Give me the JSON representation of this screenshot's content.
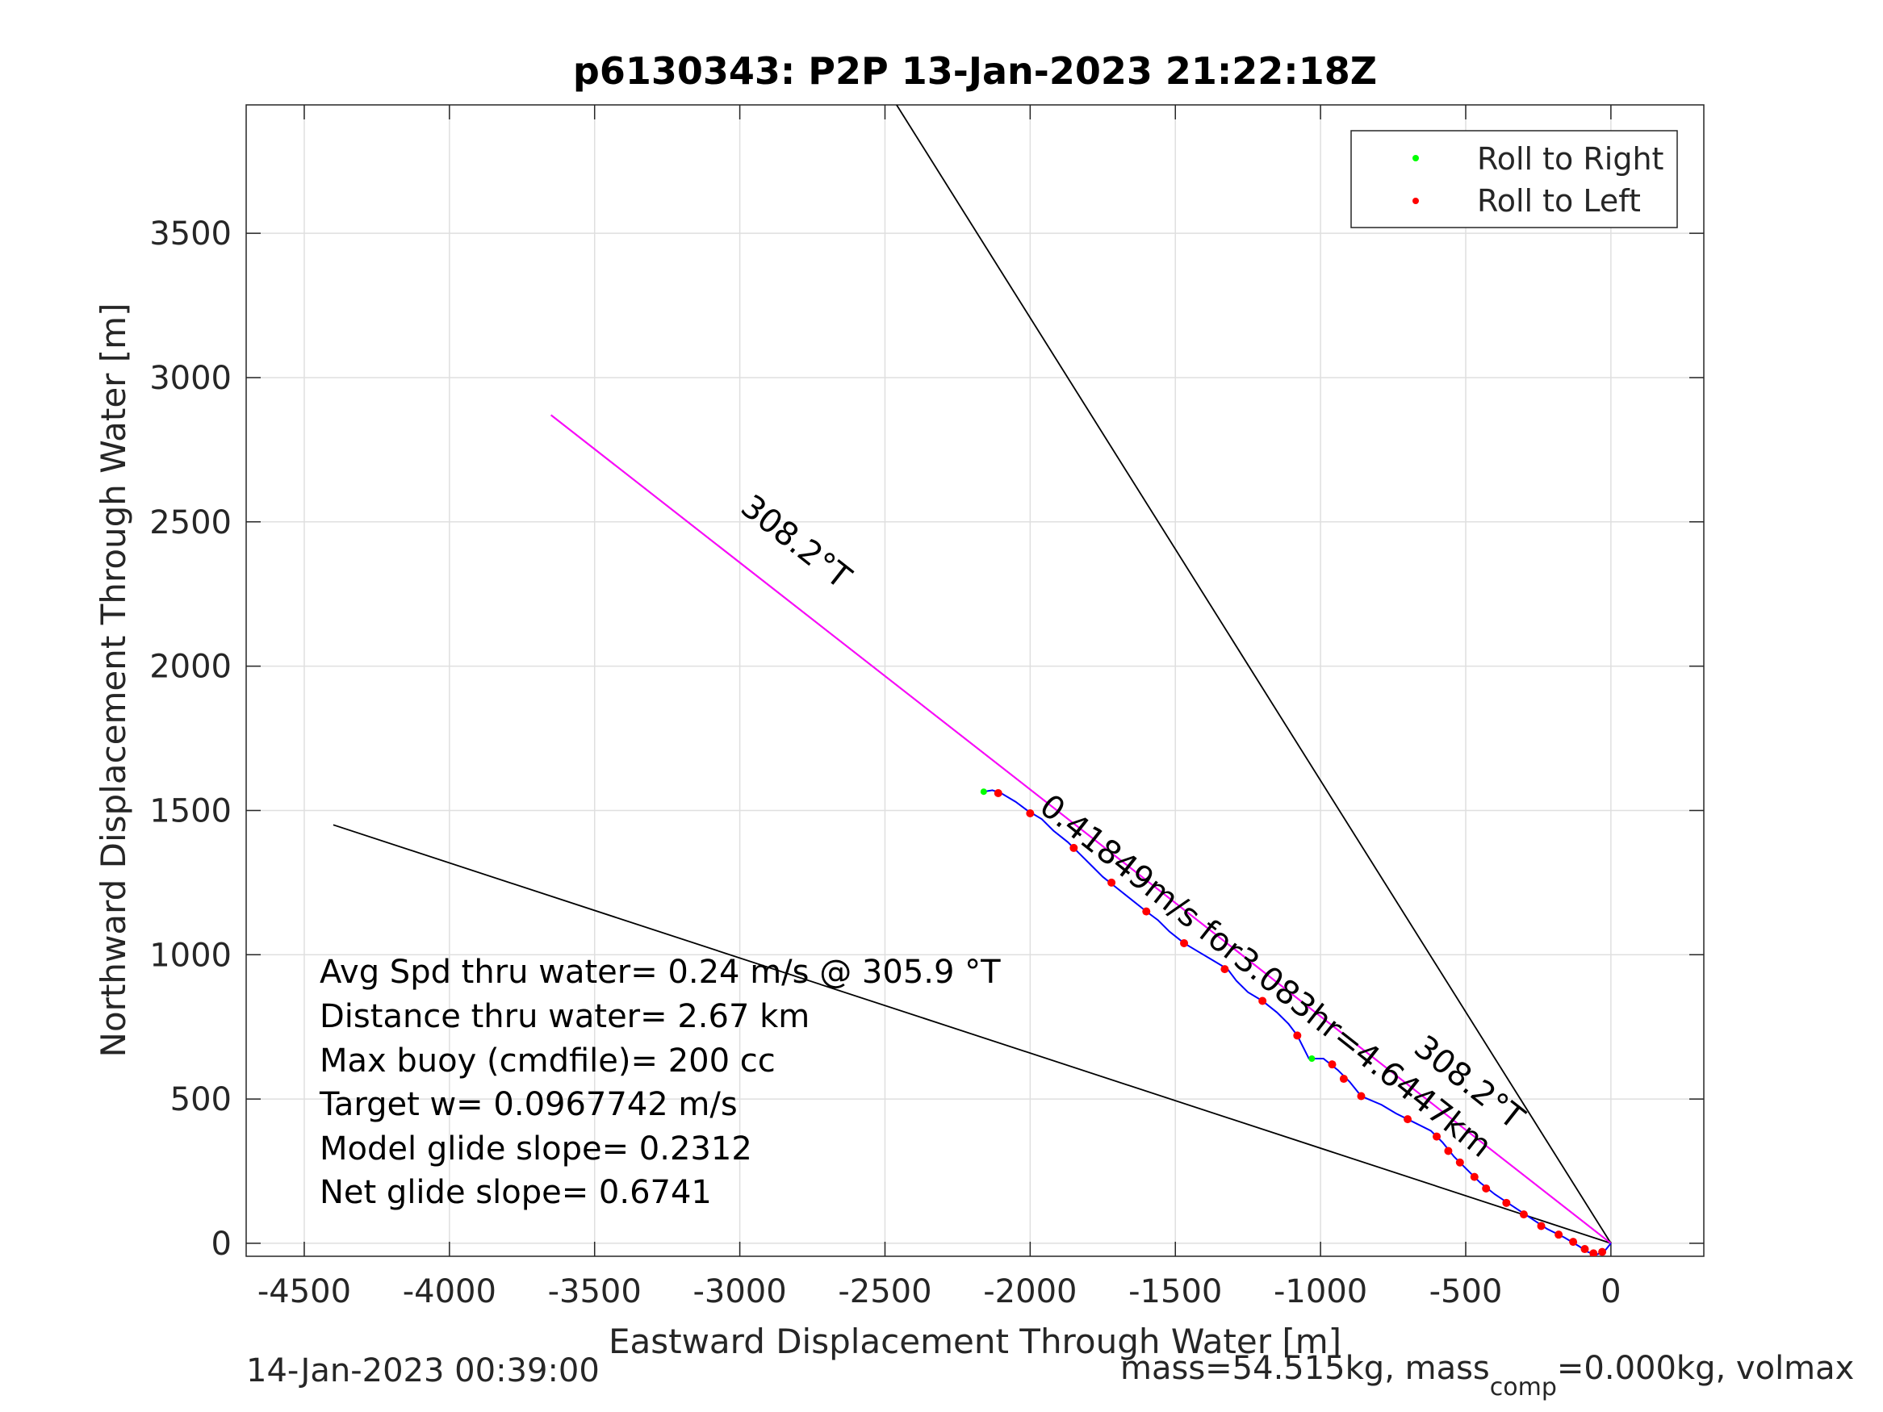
{
  "chart_data": {
    "type": "scatter",
    "title": "p6130343: P2P 13-Jan-2023 21:22:18Z",
    "xlabel": "Eastward Displacement Through Water [m]",
    "ylabel": "Northward Displacement Through Water [m]",
    "xlim": [
      -4700,
      320
    ],
    "ylim": [
      -45,
      3945
    ],
    "xticks": [
      -4500,
      -4000,
      -3500,
      -3000,
      -2500,
      -2000,
      -1500,
      -1000,
      -500,
      0
    ],
    "yticks": [
      0,
      500,
      1000,
      1500,
      2000,
      2500,
      3000,
      3500
    ],
    "grid": true,
    "legend": {
      "placement": "top-right",
      "entries": [
        {
          "label": "Roll to Right",
          "color": "#00ff00"
        },
        {
          "label": "Roll to Left",
          "color": "#ff0000"
        }
      ]
    },
    "lines": [
      {
        "points": [
          [
            0,
            0
          ],
          [
            -2460,
            3945
          ]
        ],
        "color": "#000000"
      },
      {
        "points": [
          [
            0,
            0
          ],
          [
            -4400,
            1450
          ]
        ],
        "color": "#000000"
      },
      {
        "points": [
          [
            0,
            0
          ],
          [
            -3650,
            2870
          ]
        ],
        "color": "#000000"
      },
      {
        "points": [
          [
            0,
            0
          ],
          [
            -3650,
            2870
          ]
        ],
        "color": "#ff00ff"
      }
    ],
    "track": {
      "color": "#0000ff",
      "points": [
        [
          0,
          0
        ],
        [
          -20,
          -25
        ],
        [
          -50,
          -40
        ],
        [
          -80,
          -30
        ],
        [
          -110,
          -10
        ],
        [
          -160,
          20
        ],
        [
          -220,
          50
        ],
        [
          -280,
          90
        ],
        [
          -340,
          130
        ],
        [
          -400,
          170
        ],
        [
          -450,
          210
        ],
        [
          -500,
          260
        ],
        [
          -540,
          300
        ],
        [
          -580,
          350
        ],
        [
          -620,
          390
        ],
        [
          -680,
          420
        ],
        [
          -740,
          450
        ],
        [
          -790,
          480
        ],
        [
          -860,
          510
        ],
        [
          -900,
          560
        ],
        [
          -940,
          600
        ],
        [
          -990,
          640
        ],
        [
          -1040,
          640
        ],
        [
          -1060,
          680
        ],
        [
          -1080,
          720
        ],
        [
          -1110,
          760
        ],
        [
          -1150,
          800
        ],
        [
          -1200,
          840
        ],
        [
          -1250,
          870
        ],
        [
          -1290,
          910
        ],
        [
          -1320,
          950
        ],
        [
          -1370,
          980
        ],
        [
          -1420,
          1010
        ],
        [
          -1470,
          1040
        ],
        [
          -1520,
          1080
        ],
        [
          -1560,
          1120
        ],
        [
          -1600,
          1150
        ],
        [
          -1650,
          1190
        ],
        [
          -1700,
          1230
        ],
        [
          -1750,
          1270
        ],
        [
          -1790,
          1310
        ],
        [
          -1830,
          1350
        ],
        [
          -1870,
          1390
        ],
        [
          -1920,
          1430
        ],
        [
          -1960,
          1470
        ],
        [
          -2010,
          1500
        ],
        [
          -2050,
          1530
        ],
        [
          -2100,
          1560
        ],
        [
          -2130,
          1570
        ],
        [
          -2160,
          1565
        ]
      ]
    },
    "roll_left_points": [
      [
        -30,
        -30
      ],
      [
        -60,
        -35
      ],
      [
        -90,
        -20
      ],
      [
        -130,
        5
      ],
      [
        -180,
        30
      ],
      [
        -240,
        60
      ],
      [
        -300,
        100
      ],
      [
        -360,
        140
      ],
      [
        -430,
        190
      ],
      [
        -470,
        230
      ],
      [
        -520,
        280
      ],
      [
        -560,
        320
      ],
      [
        -600,
        370
      ],
      [
        -700,
        430
      ],
      [
        -860,
        510
      ],
      [
        -920,
        570
      ],
      [
        -960,
        620
      ],
      [
        -1080,
        720
      ],
      [
        -1200,
        840
      ],
      [
        -1330,
        950
      ],
      [
        -1470,
        1040
      ],
      [
        -1600,
        1150
      ],
      [
        -1720,
        1250
      ],
      [
        -1850,
        1370
      ],
      [
        -2000,
        1490
      ],
      [
        -2110,
        1560
      ]
    ],
    "roll_right_points": [
      [
        -1030,
        640
      ],
      [
        -2160,
        1565
      ]
    ],
    "annotations": {
      "bearing_label_1": "308.2°T",
      "bearing_label_2": "308.2°T",
      "track_label": "0.41849m/s for3.083hr=4.6447km"
    },
    "stats": [
      "Avg Spd thru water=  0.24 m/s @ 305.9 °T",
      "Distance thru water=  2.67 km",
      "Max buoy (cmdfile)= 200 cc",
      "Target w= 0.0967742 m/s",
      "Model glide slope= 0.2312",
      "Net glide slope= 0.6741"
    ],
    "footer_left": "14-Jan-2023 00:39:00",
    "footer_right": {
      "part1": "mass=54.515kg, mass",
      "subscript": "comp",
      "part2": "=0.000kg, volmax"
    }
  }
}
